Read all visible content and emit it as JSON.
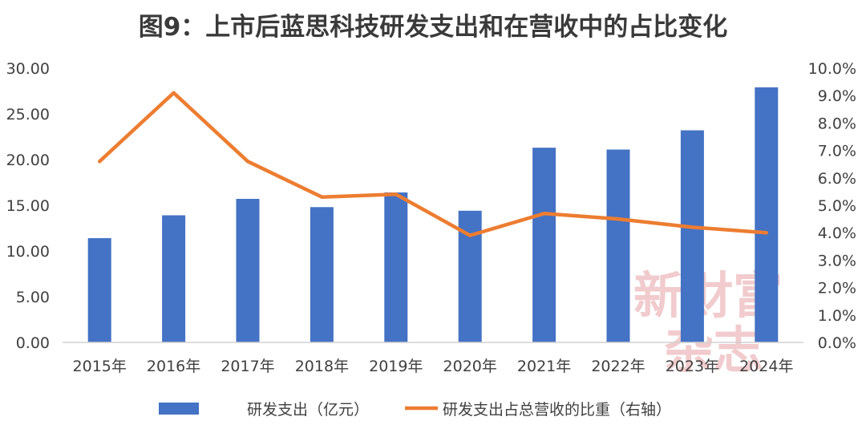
{
  "chart_data": {
    "type": "bar",
    "title": "图9：上市后蓝思科技研发支出和在营收中的占比变化",
    "categories": [
      "2015年",
      "2016年",
      "2017年",
      "2018年",
      "2019年",
      "2020年",
      "2021年",
      "2022年",
      "2023年",
      "2024年"
    ],
    "series": [
      {
        "name": "研发支出（亿元）",
        "type": "bar",
        "axis": "left",
        "color": "#4472c4",
        "values": [
          11.4,
          13.9,
          15.7,
          14.8,
          16.4,
          14.4,
          21.3,
          21.1,
          23.2,
          27.9
        ]
      },
      {
        "name": "研发支出占总营收的比重（右轴）",
        "type": "line",
        "axis": "right",
        "color": "#ed7d31",
        "values": [
          6.6,
          9.1,
          6.6,
          5.3,
          5.4,
          3.9,
          4.7,
          4.5,
          4.2,
          4.0
        ]
      }
    ],
    "yleft": {
      "min": 0,
      "max": 30,
      "ticks": [
        "0.00",
        "5.00",
        "10.00",
        "15.00",
        "20.00",
        "25.00",
        "30.00"
      ]
    },
    "yright": {
      "min": 0,
      "max": 10,
      "ticks": [
        "0.0%",
        "1.0%",
        "2.0%",
        "3.0%",
        "4.0%",
        "5.0%",
        "6.0%",
        "7.0%",
        "8.0%",
        "9.0%",
        "10.0%"
      ]
    },
    "legend_position": "bottom",
    "grid": false
  },
  "watermark": {
    "line1": "新財富",
    "line2": "杂志"
  }
}
